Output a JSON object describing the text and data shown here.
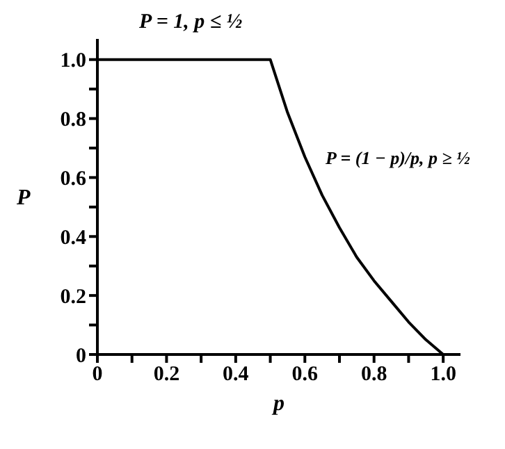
{
  "chart_data": {
    "type": "line",
    "xlabel": "p",
    "ylabel": "P",
    "annotations": [
      "P = 1,  p ≤ ½",
      "P = (1 − p)/p,  p ≥ ½"
    ],
    "x": [
      0,
      0.5,
      0.55,
      0.6,
      0.65,
      0.7,
      0.75,
      0.8,
      0.85,
      0.9,
      0.95,
      1.0
    ],
    "series": [
      {
        "color": "#000000",
        "values": [
          1,
          1,
          0.82,
          0.67,
          0.54,
          0.43,
          0.33,
          0.25,
          0.18,
          0.11,
          0.05,
          0
        ]
      }
    ],
    "xlim": [
      0,
      1.05
    ],
    "ylim": [
      0,
      1.07
    ],
    "xticks": [
      0,
      {
        "value": 0.1,
        "label": null
      },
      0.2,
      {
        "value": 0.3,
        "label": null
      },
      0.4,
      {
        "value": 0.5,
        "label": null
      },
      0.6,
      {
        "value": 0.7,
        "label": null
      },
      0.8,
      {
        "value": 0.9,
        "label": null
      },
      {
        "value": 1,
        "label": "1.0"
      }
    ],
    "yticks": [
      0,
      {
        "value": 0.1,
        "label": null
      },
      0.2,
      {
        "value": 0.3,
        "label": null
      },
      0.4,
      {
        "value": 0.5,
        "label": null
      },
      0.6,
      {
        "value": 0.7,
        "label": null
      },
      0.8,
      {
        "value": 0.9,
        "label": null
      },
      {
        "value": 1,
        "label": "1.0"
      }
    ],
    "grid": false,
    "marker": "none",
    "line_style": "solid",
    "legend": false
  }
}
